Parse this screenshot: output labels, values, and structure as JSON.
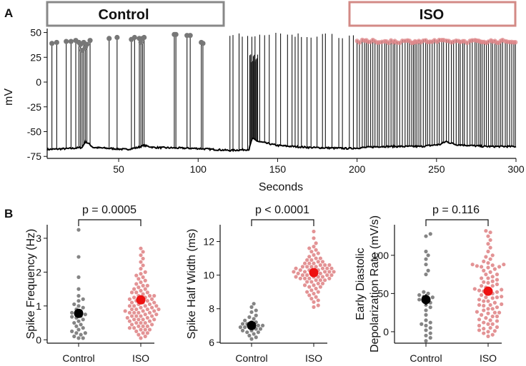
{
  "panels": {
    "a": "A",
    "b": "B"
  },
  "banners": {
    "control": {
      "label": "Control",
      "color": "#888888"
    },
    "iso": {
      "label": "ISO",
      "color": "#d38a86"
    }
  },
  "colors": {
    "control": "#777777",
    "iso": "#e0878a",
    "control_mean": "#000000",
    "iso_mean": "#ee1111",
    "trace": "#000000"
  },
  "chart_data": [
    {
      "type": "line",
      "title": "",
      "xlabel": "Seconds",
      "ylabel": "mV",
      "xlim": [
        5,
        300
      ],
      "ylim": [
        -77,
        54
      ],
      "xticks": [
        50,
        100,
        150,
        200,
        250,
        300
      ],
      "yticks": [
        -75,
        -50,
        -25,
        0,
        25,
        50
      ],
      "baseline_mV": [
        [
          5,
          -68
        ],
        [
          20,
          -67
        ],
        [
          27,
          -66
        ],
        [
          29,
          -60
        ],
        [
          31,
          -62
        ],
        [
          34,
          -66
        ],
        [
          45,
          -67
        ],
        [
          55,
          -68
        ],
        [
          62,
          -66
        ],
        [
          66,
          -64
        ],
        [
          72,
          -66
        ],
        [
          100,
          -67
        ],
        [
          120,
          -69
        ],
        [
          132,
          -68
        ],
        [
          134,
          -57
        ],
        [
          138,
          -60
        ],
        [
          150,
          -64
        ],
        [
          170,
          -66
        ],
        [
          195,
          -67
        ],
        [
          215,
          -65
        ],
        [
          240,
          -65
        ],
        [
          252,
          -63
        ],
        [
          256,
          -60
        ],
        [
          262,
          -63
        ],
        [
          280,
          -65
        ],
        [
          300,
          -65
        ]
      ],
      "control_spike_times": [
        8,
        11,
        17,
        20,
        23,
        25,
        26,
        27,
        28,
        29,
        30,
        32,
        44,
        49,
        58,
        60,
        63,
        64,
        65,
        66,
        85,
        86,
        93,
        95,
        102,
        103
      ],
      "control_spike_peaks": [
        39,
        40,
        41,
        41,
        42,
        40,
        38,
        32,
        40,
        35,
        38,
        42,
        44,
        45,
        43,
        45,
        44,
        40,
        44,
        45,
        48,
        48,
        47,
        47,
        40,
        39
      ],
      "iso_marker_peak_mV": 41,
      "series": [
        {
          "name": "Control",
          "window": [
            5,
            110
          ]
        },
        {
          "name": "ISO",
          "window": [
            200,
            300
          ]
        }
      ]
    },
    {
      "type": "scatter",
      "ylabel": "Spike Frequency (Hz)",
      "categories": [
        "Control",
        "ISO"
      ],
      "ylim": [
        -0.1,
        3.4
      ],
      "yticks": [
        0,
        1,
        2,
        3
      ],
      "pvalue": "p = 0.0005",
      "series": [
        {
          "name": "Control",
          "values": [
            3.25,
            2.45,
            1.85,
            1.5,
            1.3,
            1.2,
            1.15,
            1.05,
            1.0,
            0.95,
            0.9,
            0.85,
            0.8,
            0.78,
            0.75,
            0.7,
            0.68,
            0.65,
            0.6,
            0.55,
            0.5,
            0.45,
            0.4,
            0.35,
            0.3,
            0.25,
            0.2,
            0.2,
            0.15,
            0.1,
            0.05,
            0.05
          ],
          "mean": 0.78,
          "sem": 0.1
        },
        {
          "name": "ISO",
          "values": [
            2.7,
            2.6,
            2.5,
            2.4,
            2.3,
            2.2,
            2.1,
            2.0,
            1.95,
            1.9,
            1.85,
            1.8,
            1.75,
            1.7,
            1.65,
            1.6,
            1.55,
            1.5,
            1.5,
            1.45,
            1.4,
            1.4,
            1.35,
            1.3,
            1.3,
            1.25,
            1.25,
            1.2,
            1.2,
            1.15,
            1.15,
            1.1,
            1.1,
            1.05,
            1.05,
            1.0,
            1.0,
            1.0,
            0.95,
            0.95,
            0.9,
            0.9,
            0.9,
            0.85,
            0.85,
            0.85,
            0.8,
            0.8,
            0.8,
            0.75,
            0.75,
            0.7,
            0.7,
            0.7,
            0.65,
            0.65,
            0.6,
            0.6,
            0.6,
            0.55,
            0.55,
            0.5,
            0.5,
            0.45,
            0.45,
            0.4,
            0.4,
            0.35,
            0.35,
            0.3,
            0.3,
            0.25,
            0.2,
            0.15,
            0.1,
            0.05,
            1.6,
            1.4,
            1.3,
            1.2,
            1.1,
            1.0,
            0.9,
            0.8,
            0.7,
            0.6,
            0.5,
            0.4,
            0.3,
            0.2
          ],
          "mean": 1.18,
          "sem": 0.06
        }
      ]
    },
    {
      "type": "scatter",
      "ylabel": "Spike Half Width (ms)",
      "categories": [
        "Control",
        "ISO"
      ],
      "ylim": [
        5.95,
        13.0
      ],
      "yticks": [
        6,
        8,
        10,
        12
      ],
      "pvalue": "p < 0.0001",
      "series": [
        {
          "name": "Control",
          "values": [
            8.3,
            8.1,
            7.9,
            7.8,
            7.6,
            7.5,
            7.4,
            7.3,
            7.2,
            7.2,
            7.1,
            7.1,
            7.0,
            7.0,
            7.0,
            6.9,
            6.9,
            6.9,
            6.8,
            6.8,
            6.7,
            6.7,
            6.6,
            6.6,
            6.5,
            6.4,
            6.3,
            6.2
          ],
          "mean": 7.0,
          "sem": 0.1
        },
        {
          "name": "ISO",
          "values": [
            12.6,
            12.2,
            11.9,
            11.7,
            11.6,
            11.5,
            11.4,
            11.3,
            11.2,
            11.1,
            11.0,
            11.0,
            10.9,
            10.9,
            10.8,
            10.8,
            10.7,
            10.7,
            10.6,
            10.6,
            10.5,
            10.5,
            10.5,
            10.4,
            10.4,
            10.4,
            10.3,
            10.3,
            10.3,
            10.2,
            10.2,
            10.2,
            10.1,
            10.1,
            10.1,
            10.0,
            10.0,
            10.0,
            9.9,
            9.9,
            9.9,
            9.8,
            9.8,
            9.8,
            9.7,
            9.7,
            9.6,
            9.6,
            9.5,
            9.5,
            9.4,
            9.4,
            9.3,
            9.3,
            9.2,
            9.1,
            9.0,
            8.9,
            8.8,
            8.7,
            8.6,
            8.5,
            8.4,
            8.2,
            10.6,
            10.4,
            10.2,
            10.0,
            9.8,
            10.3,
            10.1,
            9.9,
            10.5,
            10.7,
            10.2,
            9.7,
            9.0,
            8.1
          ],
          "mean": 10.15,
          "sem": 0.08
        }
      ]
    },
    {
      "type": "scatter",
      "ylabel": "Early Diastolic Depolarization Rate (mV/s)",
      "ylabel_lines": [
        "Early Diastolic",
        "Depolarization Rate (mV/s)"
      ],
      "categories": [
        "Control",
        "ISO"
      ],
      "ylim": [
        -15,
        140
      ],
      "yticks": [
        0,
        50,
        100
      ],
      "pvalue": "p = 0.116",
      "series": [
        {
          "name": "Control",
          "values": [
            128,
            125,
            105,
            100,
            95,
            88,
            80,
            75,
            52,
            50,
            48,
            46,
            45,
            44,
            42,
            40,
            38,
            35,
            32,
            28,
            22,
            15,
            12,
            10,
            8,
            5,
            2,
            -2,
            -5,
            -8,
            -12
          ],
          "mean": 42,
          "sem": 7
        },
        {
          "name": "ISO",
          "values": [
            132,
            130,
            125,
            120,
            115,
            110,
            105,
            100,
            98,
            95,
            92,
            90,
            88,
            88,
            87,
            86,
            85,
            84,
            82,
            80,
            78,
            75,
            72,
            70,
            68,
            66,
            64,
            62,
            60,
            58,
            56,
            55,
            54,
            53,
            52,
            50,
            48,
            46,
            45,
            44,
            42,
            40,
            38,
            36,
            35,
            34,
            32,
            30,
            28,
            26,
            25,
            24,
            22,
            20,
            18,
            16,
            15,
            14,
            12,
            10,
            8,
            6,
            5,
            4,
            2,
            1,
            0,
            -2,
            -4,
            -6,
            35,
            45,
            55,
            65,
            75,
            85,
            40,
            30,
            20,
            10,
            60,
            70,
            50,
            25
          ],
          "mean": 53,
          "sem": 4
        }
      ]
    }
  ]
}
